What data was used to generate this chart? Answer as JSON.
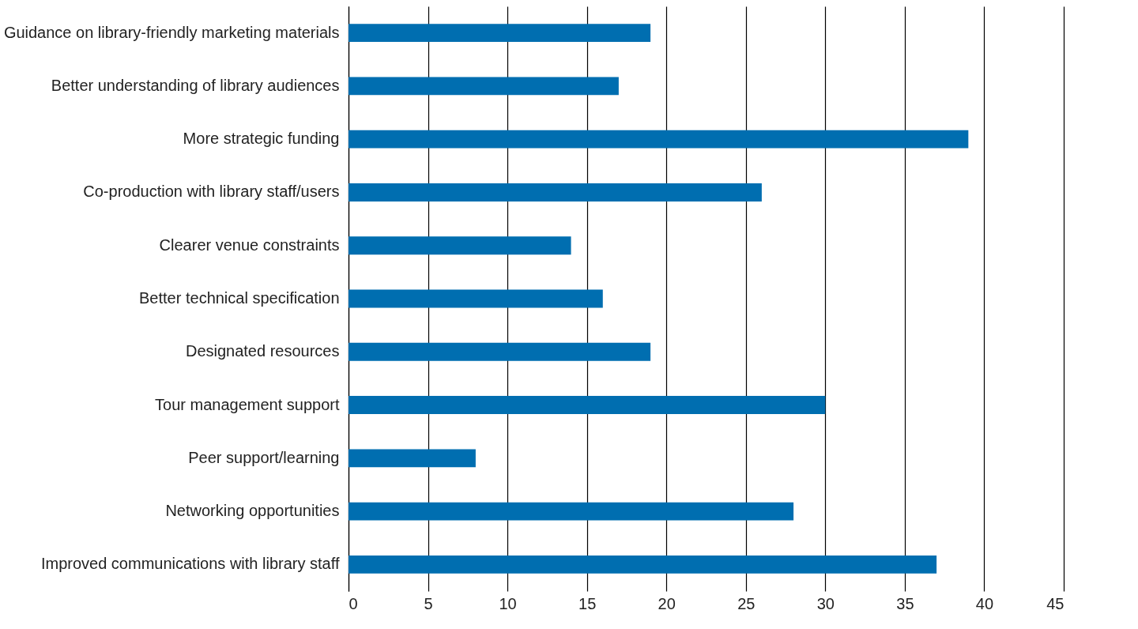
{
  "chart_data": {
    "type": "bar",
    "orientation": "horizontal",
    "categories": [
      "Guidance on library-friendly marketing materials",
      "Better understanding of library audiences",
      "More strategic funding",
      "Co-production with library staff/users",
      "Clearer venue constraints",
      "Better technical specification",
      "Designated resources",
      "Tour management support",
      "Peer support/learning",
      "Networking opportunities",
      "Improved communications with library staff"
    ],
    "values": [
      19,
      17,
      39,
      26,
      14,
      16,
      19,
      30,
      8,
      28,
      37
    ],
    "color": "#006eb0",
    "xlim": [
      0,
      45
    ],
    "xticks": [
      0,
      5,
      10,
      15,
      20,
      25,
      30,
      35,
      40,
      45
    ],
    "grid": "x"
  }
}
